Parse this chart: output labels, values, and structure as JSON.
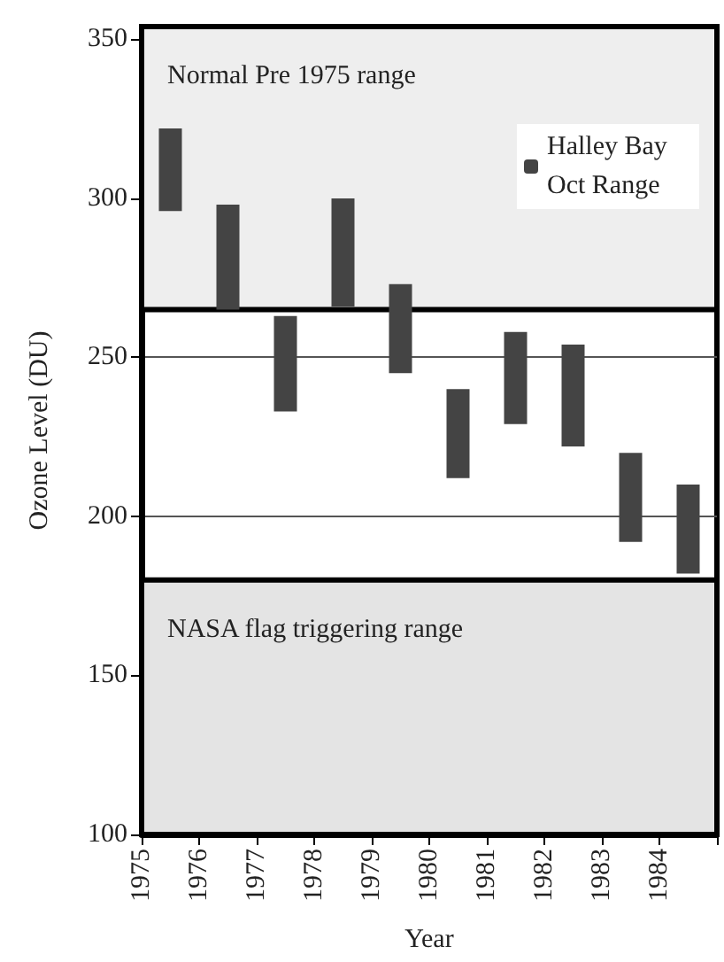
{
  "chart_data": {
    "type": "bar",
    "xlabel": "Year",
    "ylabel": "Ozone Level (DU)",
    "x": [
      1975.5,
      1976.5,
      1977.5,
      1978.5,
      1979.5,
      1980.5,
      1981.5,
      1982.5,
      1983.5,
      1984.5
    ],
    "series": [
      {
        "name": "Halley Bay Oct Range",
        "color": "#444444",
        "values": [
          26,
          33,
          30,
          34,
          28,
          28,
          29,
          32,
          28,
          28
        ],
        "base": [
          296,
          265,
          233,
          266,
          245,
          212,
          229,
          222,
          192,
          182
        ]
      }
    ],
    "xlim": [
      1975,
      1985
    ],
    "xticks": [
      1975,
      1976,
      1977,
      1978,
      1979,
      1980,
      1981,
      1982,
      1983,
      1984,
      {
        "value": 1985,
        "label": null
      }
    ],
    "ylim": [
      100,
      354
    ],
    "yticks": [
      100,
      150,
      200,
      250,
      300,
      350
    ],
    "bands": [
      {
        "axis": "y",
        "from": 265,
        "to": 354,
        "label": "Normal Pre 1975 range",
        "color": "#eeeeee"
      },
      {
        "axis": "y",
        "from": 100,
        "to": 180,
        "label": "NASA flag triggering range",
        "color": "#e4e4e4"
      }
    ],
    "grid": "y",
    "legend": "top right"
  }
}
